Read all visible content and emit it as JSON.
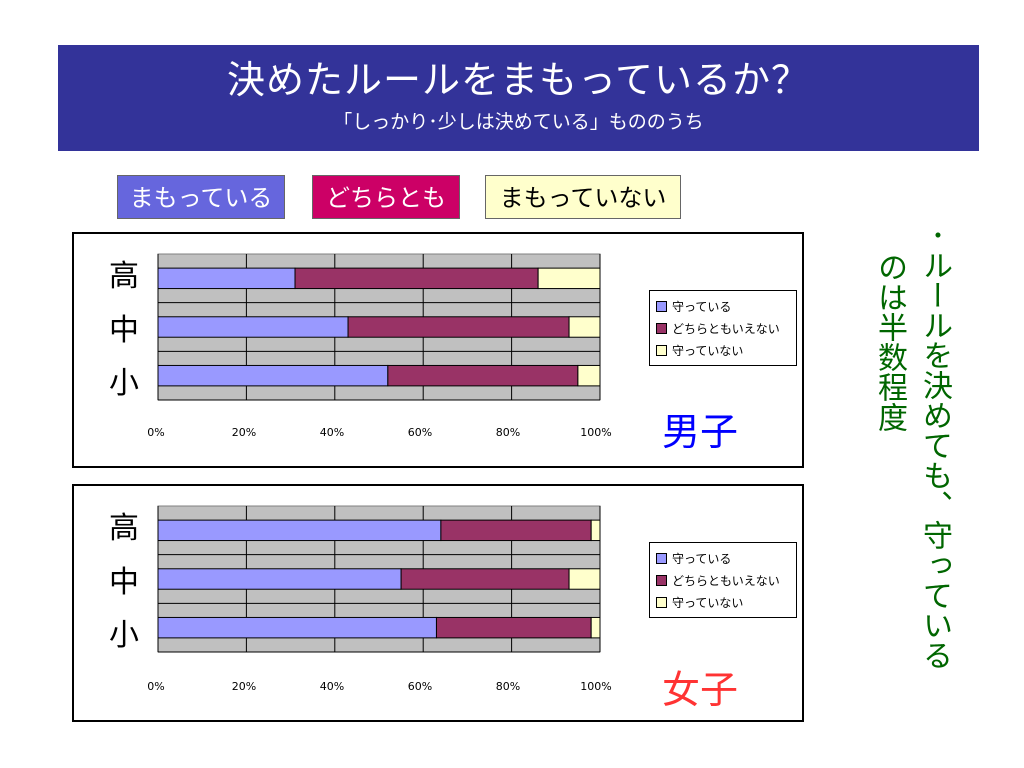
{
  "title": "決めたルールをまもっているか？",
  "subtitle": "「しっかり･少しは決めている」もののうち",
  "top_legend": [
    {
      "label": "まもっている",
      "color": "#6666dd"
    },
    {
      "label": "どちらとも",
      "color": "#cc0066"
    },
    {
      "label": "まもっていない",
      "color": "#ffffcc"
    }
  ],
  "note": {
    "line1": "･ルールを決めても、守っている",
    "line2": "のは半数程度"
  },
  "colors": {
    "keep": "#9999ff",
    "either": "#993366",
    "not": "#ffffcc",
    "plot_bg": "#c0c0c0",
    "boys_label": "#0000ff",
    "girls_label": "#ff3333"
  },
  "panels": [
    {
      "gender_label": "男子",
      "row_labels": [
        "高",
        "中",
        "小"
      ]
    },
    {
      "gender_label": "女子",
      "row_labels": [
        "高",
        "中",
        "小"
      ]
    }
  ],
  "chart_data": [
    {
      "type": "bar",
      "orientation": "horizontal",
      "stacked": "percent",
      "title": "男子",
      "categories": [
        "高",
        "中",
        "小"
      ],
      "series": [
        {
          "name": "守っている",
          "values": [
            31,
            43,
            52
          ]
        },
        {
          "name": "どちらともいえない",
          "values": [
            55,
            50,
            43
          ]
        },
        {
          "name": "守っていない",
          "values": [
            14,
            7,
            5
          ]
        }
      ],
      "x_ticks": [
        "0%",
        "20%",
        "40%",
        "60%",
        "80%",
        "100%"
      ],
      "xlim": [
        0,
        100
      ],
      "grid": true,
      "legend_position": "right"
    },
    {
      "type": "bar",
      "orientation": "horizontal",
      "stacked": "percent",
      "title": "女子",
      "categories": [
        "高",
        "中",
        "小"
      ],
      "series": [
        {
          "name": "守っている",
          "values": [
            64,
            55,
            63
          ]
        },
        {
          "name": "どちらともいえない",
          "values": [
            34,
            38,
            35
          ]
        },
        {
          "name": "守っていない",
          "values": [
            2,
            7,
            2
          ]
        }
      ],
      "x_ticks": [
        "0%",
        "20%",
        "40%",
        "60%",
        "80%",
        "100%"
      ],
      "xlim": [
        0,
        100
      ],
      "grid": true,
      "legend_position": "right"
    }
  ]
}
